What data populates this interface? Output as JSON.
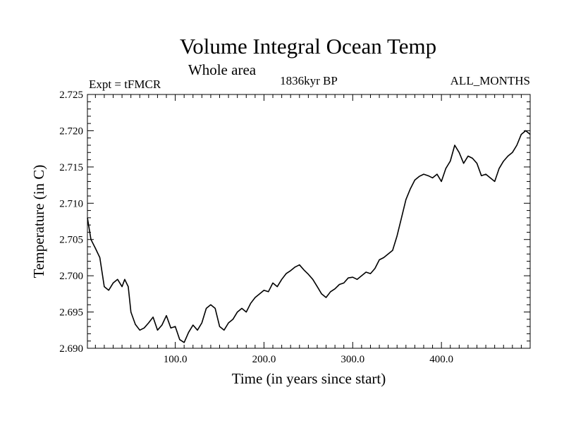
{
  "chart_data": {
    "type": "line",
    "title": "Volume Integral Ocean Temp",
    "subtitle": "Whole area",
    "left_label": "Expt = tFMCR",
    "center_label": "1836kyr BP",
    "right_label": "ALL_MONTHS",
    "xlabel": "Time (in years since start)",
    "ylabel": "Temperature (in C)",
    "xlim": [
      1,
      500
    ],
    "ylim": [
      2.69,
      2.725
    ],
    "x_ticks": [
      100,
      200,
      300,
      400
    ],
    "x_tick_labels": [
      "100.0",
      "200.0",
      "300.0",
      "400.0"
    ],
    "y_ticks": [
      2.69,
      2.695,
      2.7,
      2.705,
      2.71,
      2.715,
      2.72,
      2.725
    ],
    "y_tick_labels": [
      "2.690",
      "2.695",
      "2.700",
      "2.705",
      "2.710",
      "2.715",
      "2.720",
      "2.725"
    ],
    "series": [
      {
        "name": "Volume integral ocean temperature",
        "color": "#000000",
        "x": [
          1,
          5,
          10,
          15,
          20,
          25,
          30,
          35,
          40,
          43,
          47,
          50,
          55,
          60,
          65,
          70,
          75,
          80,
          85,
          90,
          95,
          100,
          105,
          110,
          115,
          120,
          125,
          130,
          135,
          140,
          145,
          150,
          155,
          160,
          165,
          170,
          175,
          180,
          185,
          190,
          195,
          200,
          205,
          210,
          215,
          220,
          225,
          230,
          235,
          240,
          245,
          250,
          255,
          260,
          265,
          270,
          275,
          280,
          285,
          290,
          295,
          300,
          305,
          310,
          315,
          320,
          325,
          330,
          335,
          340,
          345,
          350,
          355,
          360,
          365,
          370,
          375,
          380,
          385,
          390,
          395,
          400,
          405,
          410,
          415,
          420,
          425,
          430,
          435,
          440,
          445,
          450,
          455,
          460,
          465,
          470,
          475,
          480,
          485,
          490,
          495,
          500
        ],
        "values": [
          2.708,
          2.705,
          2.7038,
          2.7025,
          2.6985,
          2.698,
          2.699,
          2.6995,
          2.6985,
          2.6995,
          2.6985,
          2.695,
          2.6933,
          2.6925,
          2.6928,
          2.6935,
          2.6943,
          2.6925,
          2.6932,
          2.6945,
          2.6928,
          2.693,
          2.6912,
          2.6908,
          2.6922,
          2.6932,
          2.6925,
          2.6935,
          2.6955,
          2.696,
          2.6955,
          2.693,
          2.6925,
          2.6935,
          2.694,
          2.695,
          2.6955,
          2.695,
          2.6962,
          2.697,
          2.6975,
          2.698,
          2.6978,
          2.699,
          2.6985,
          2.6995,
          2.7003,
          2.7007,
          2.7012,
          2.7015,
          2.7008,
          2.7002,
          2.6995,
          2.6985,
          2.6975,
          2.697,
          2.6978,
          2.6982,
          2.6988,
          2.699,
          2.6997,
          2.6998,
          2.6995,
          2.7,
          2.7005,
          2.7003,
          2.701,
          2.7022,
          2.7025,
          2.703,
          2.7035,
          2.7055,
          2.708,
          2.7105,
          2.712,
          2.7132,
          2.7137,
          2.714,
          2.7138,
          2.7135,
          2.714,
          2.713,
          2.7148,
          2.7158,
          2.718,
          2.717,
          2.7155,
          2.7165,
          2.7162,
          2.7155,
          2.7138,
          2.714,
          2.7135,
          2.713,
          2.7148,
          2.7158,
          2.7165,
          2.717,
          2.718,
          2.7195,
          2.72,
          2.7195
        ]
      }
    ]
  }
}
